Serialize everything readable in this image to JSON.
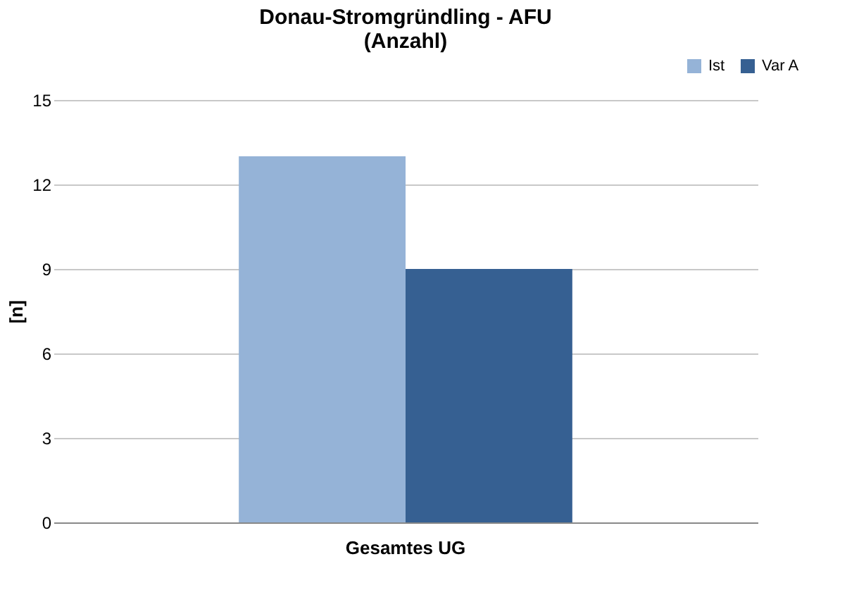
{
  "chart_data": {
    "type": "bar",
    "title": "Donau-Stromgründling - AFU\n(Anzahl)",
    "ylabel": "[n]",
    "categories": [
      "Gesamtes UG"
    ],
    "series": [
      {
        "name": "Ist",
        "color": "#95b3d7",
        "values": [
          13
        ]
      },
      {
        "name": "Var A",
        "color": "#366092",
        "values": [
          9
        ]
      }
    ],
    "ylim": [
      0,
      15
    ],
    "yticks": [
      0,
      3,
      6,
      9,
      12,
      15
    ],
    "grid": "y",
    "legend": "top right"
  }
}
